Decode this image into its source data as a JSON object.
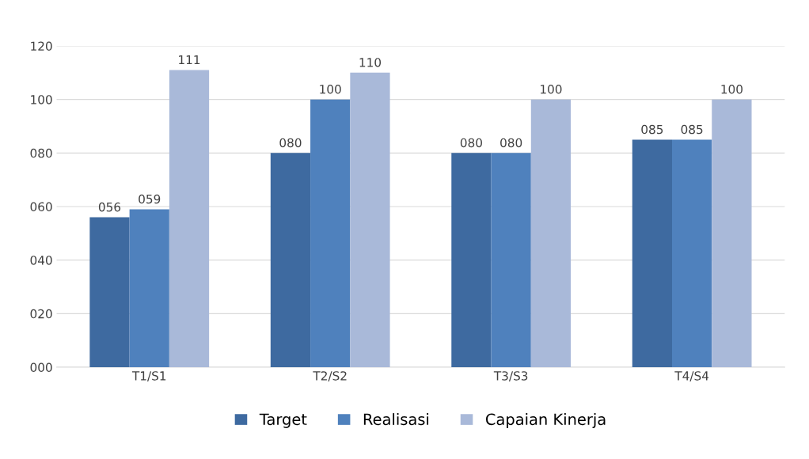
{
  "chart_data": {
    "type": "bar",
    "categories": [
      "T1/S1",
      "T2/S2",
      "T3/S3",
      "T4/S4"
    ],
    "series": [
      {
        "name": "Target",
        "color": "#3e6aa0",
        "values": [
          56,
          80,
          80,
          85
        ],
        "value_labels": [
          "056",
          "080",
          "080",
          "085"
        ]
      },
      {
        "name": "Realisasi",
        "color": "#4f81bd",
        "values": [
          59,
          100,
          80,
          85
        ],
        "value_labels": [
          "059",
          "100",
          "080",
          "085"
        ]
      },
      {
        "name": "Capaian Kinerja",
        "color": "#a9b9d9",
        "values": [
          111,
          110,
          100,
          100
        ],
        "value_labels": [
          "111",
          "110",
          "100",
          "100"
        ]
      }
    ],
    "ylim": [
      0,
      120
    ],
    "yticks": [
      {
        "value": 0,
        "label": "000"
      },
      {
        "value": 20,
        "label": "020"
      },
      {
        "value": 40,
        "label": "040"
      },
      {
        "value": 60,
        "label": "060"
      },
      {
        "value": 80,
        "label": "080"
      },
      {
        "value": 100,
        "label": "100"
      },
      {
        "value": 120,
        "label": "120"
      }
    ],
    "grid": "y",
    "legend": "bottom"
  }
}
